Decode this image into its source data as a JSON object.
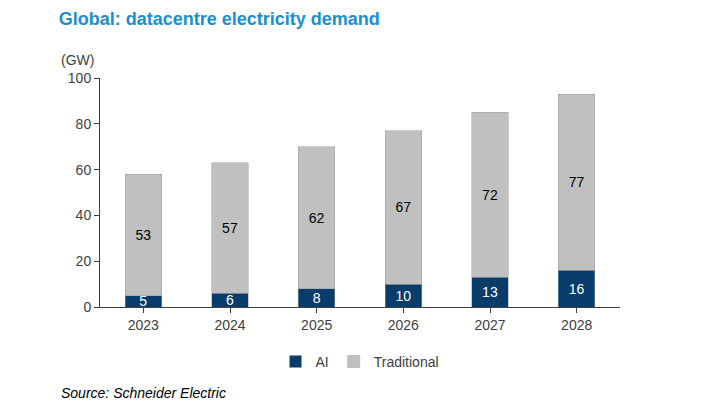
{
  "chart_data": {
    "type": "bar",
    "title": "Global: datacentre electricity demand",
    "y_label": "(GW)",
    "source": "Source: Schneider Electric",
    "categories": [
      "2023",
      "2024",
      "2025",
      "2026",
      "2027",
      "2028"
    ],
    "series": [
      {
        "name": "AI",
        "color": "#083d6b",
        "values": [
          5,
          6,
          8,
          10,
          13,
          16
        ]
      },
      {
        "name": "Traditional",
        "color": "#c0c0c0",
        "values": [
          53,
          57,
          62,
          67,
          72,
          77
        ]
      }
    ],
    "stacked": true,
    "data_labels": true,
    "ylim": [
      0,
      100
    ],
    "yticks": [
      0,
      20,
      40,
      60,
      80,
      100
    ],
    "grid": false,
    "legend": "bottom"
  }
}
